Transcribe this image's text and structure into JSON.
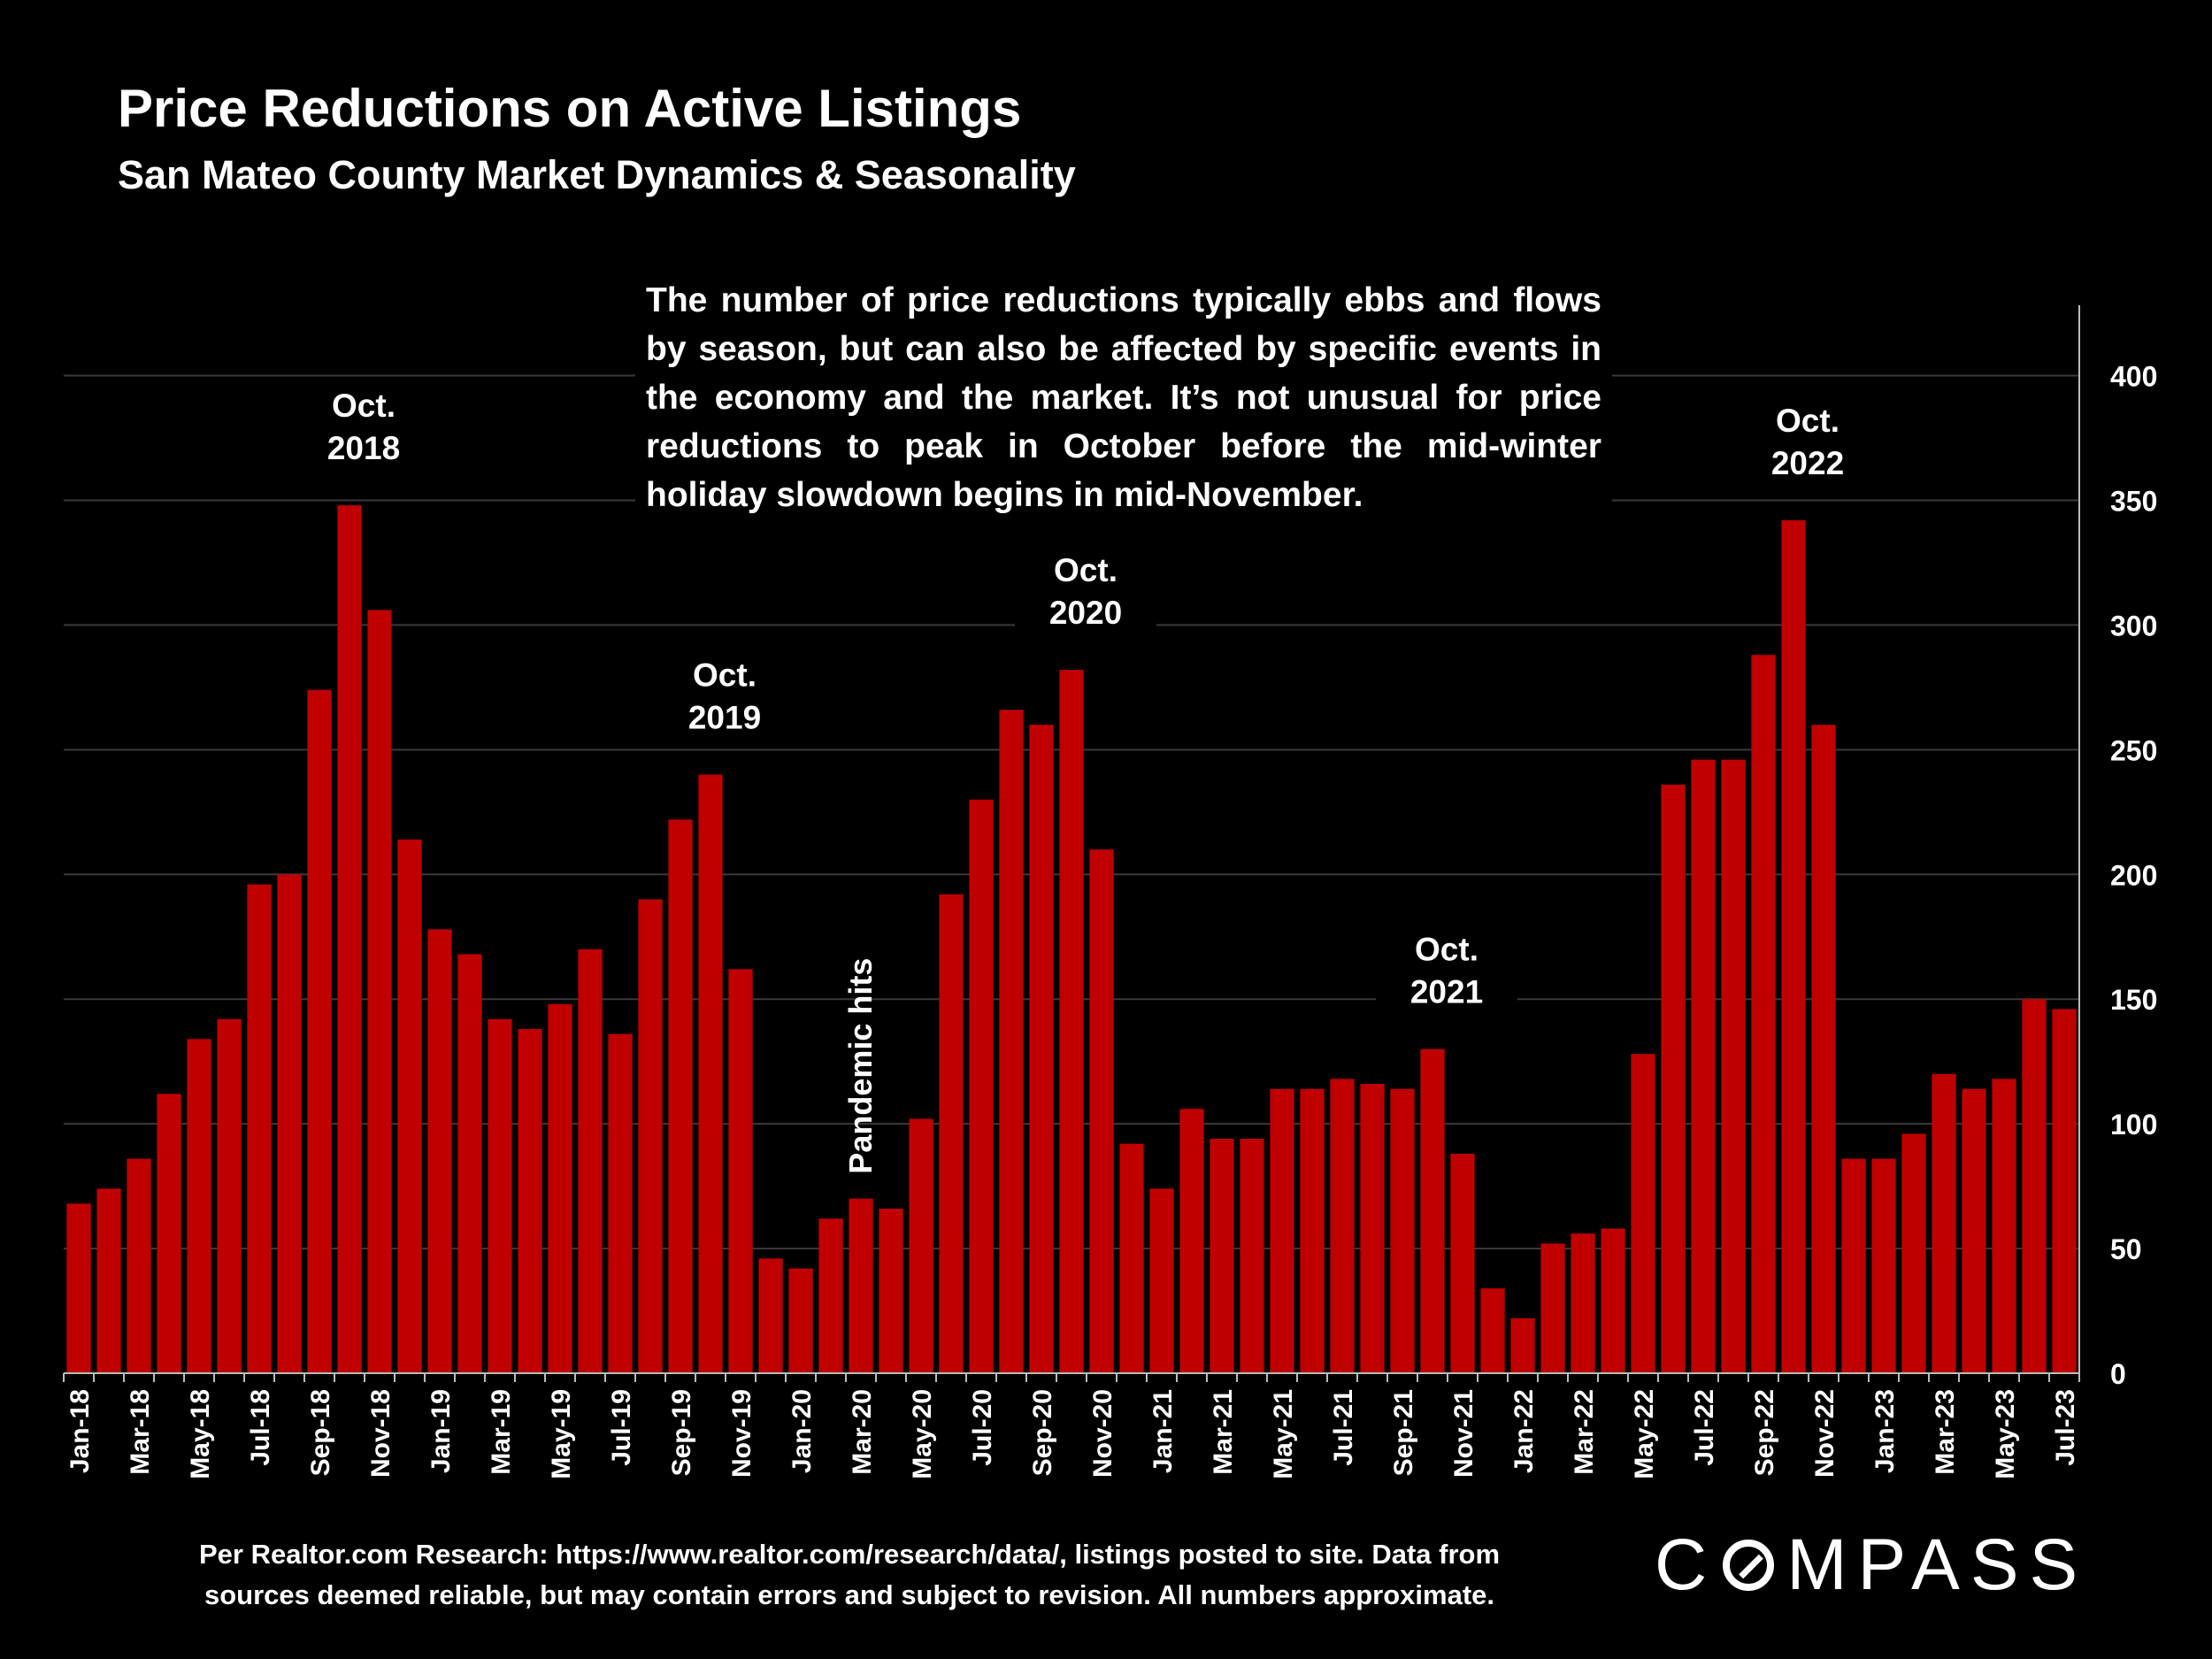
{
  "title": "Price Reductions on Active Listings",
  "subtitle": "San Mateo County Market Dynamics & Seasonality",
  "note": "The number of price reductions typically ebbs and flows by season, but can also be affected by specific events in the economy and the market. It’s not unusual for price reductions to peak in October before the mid-winter holiday slowdown begins in mid-November.",
  "source": "Per Realtor.com Research:  https://www.realtor.com/research/data/, listings posted to site. Data from sources deemed reliable, but may contain errors and subject to revision. All numbers approximate.",
  "logo": {
    "text_before": "C",
    "text_after": "MPASS"
  },
  "chart_data": {
    "type": "bar",
    "categories": [
      "Jan-18",
      "Feb-18",
      "Mar-18",
      "Apr-18",
      "May-18",
      "Jun-18",
      "Jul-18",
      "Aug-18",
      "Sep-18",
      "Oct-18",
      "Nov-18",
      "Dec-18",
      "Jan-19",
      "Feb-19",
      "Mar-19",
      "Apr-19",
      "May-19",
      "Jun-19",
      "Jul-19",
      "Aug-19",
      "Sep-19",
      "Oct-19",
      "Nov-19",
      "Dec-19",
      "Jan-20",
      "Feb-20",
      "Mar-20",
      "Apr-20",
      "May-20",
      "Jun-20",
      "Jul-20",
      "Aug-20",
      "Sep-20",
      "Oct-20",
      "Nov-20",
      "Dec-20",
      "Jan-21",
      "Feb-21",
      "Mar-21",
      "Apr-21",
      "May-21",
      "Jun-21",
      "Jul-21",
      "Aug-21",
      "Sep-21",
      "Oct-21",
      "Nov-21",
      "Dec-21",
      "Jan-22",
      "Feb-22",
      "Mar-22",
      "Apr-22",
      "May-22",
      "Jun-22",
      "Jul-22",
      "Aug-22",
      "Sep-22",
      "Oct-22",
      "Nov-22",
      "Dec-22",
      "Jan-23",
      "Feb-23",
      "Mar-23",
      "Apr-23",
      "May-23",
      "Jun-23",
      "Jul-23"
    ],
    "values": [
      68,
      74,
      86,
      112,
      134,
      142,
      196,
      200,
      274,
      348,
      306,
      214,
      178,
      168,
      142,
      138,
      148,
      170,
      136,
      190,
      222,
      240,
      162,
      46,
      42,
      62,
      70,
      66,
      102,
      192,
      230,
      266,
      260,
      282,
      210,
      92,
      74,
      106,
      94,
      94,
      114,
      114,
      118,
      116,
      114,
      130,
      88,
      34,
      22,
      52,
      56,
      58,
      128,
      236,
      246,
      246,
      288,
      342,
      260,
      86,
      86,
      96,
      120,
      114,
      118,
      150,
      146
    ],
    "tick_labels": [
      "Jan-18",
      "Mar-18",
      "May-18",
      "Jul-18",
      "Sep-18",
      "Nov-18",
      "Jan-19",
      "Mar-19",
      "May-19",
      "Jul-19",
      "Sep-19",
      "Nov-19",
      "Jan-20",
      "Mar-20",
      "May-20",
      "Jul-20",
      "Sep-20",
      "Nov-20",
      "Jan-21",
      "Mar-21",
      "May-21",
      "Jul-21",
      "Sep-21",
      "Nov-21",
      "Jan-22",
      "Mar-22",
      "May-22",
      "Jul-22",
      "Sep-22",
      "Nov-22",
      "Jan-23",
      "Mar-23",
      "May-23",
      "Jul-23"
    ],
    "y_ticks": [
      0,
      50,
      100,
      150,
      200,
      250,
      300,
      350,
      400
    ],
    "ylim": [
      0,
      430
    ],
    "y_axis_side": "right",
    "grid": true,
    "bar_color": "#c00000",
    "annotations": [
      {
        "category": "Oct-18",
        "lines": [
          "Oct.",
          "2018"
        ]
      },
      {
        "category": "Oct-19",
        "lines": [
          "Oct.",
          "2019"
        ]
      },
      {
        "category": "Oct-20",
        "lines": [
          "Oct.",
          "2020"
        ]
      },
      {
        "category": "Oct-21",
        "lines": [
          "Oct.",
          "2021"
        ]
      },
      {
        "category": "Oct-22",
        "lines": [
          "Oct.",
          "2022"
        ]
      },
      {
        "category": "Mar-20",
        "text": "Pandemic hits",
        "orientation": "vertical"
      }
    ]
  }
}
